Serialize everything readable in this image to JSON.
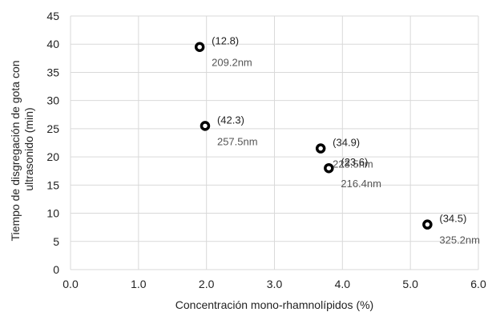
{
  "chart_data": {
    "type": "scatter",
    "title": "",
    "xlabel": "Concentración mono-rhamnolípidos (%)",
    "ylabel": [
      "Tiempo de disgregación de gota con",
      "ultrasonido (min)"
    ],
    "xlim": [
      0,
      6
    ],
    "ylim": [
      0,
      45
    ],
    "x_ticks": [
      "0.0",
      "1.0",
      "2.0",
      "3.0",
      "4.0",
      "5.0",
      "6.0"
    ],
    "y_ticks": [
      "0",
      "5",
      "10",
      "15",
      "20",
      "25",
      "30",
      "35",
      "40",
      "45"
    ],
    "grid": true,
    "points": [
      {
        "x": 1.9,
        "y": 39.5,
        "label": "(12.8)",
        "size_label": "209.2nm"
      },
      {
        "x": 1.98,
        "y": 25.5,
        "label": "(42.3)",
        "size_label": "257.5nm"
      },
      {
        "x": 3.68,
        "y": 21.5,
        "label": "(34.9)",
        "size_label": "223.5nm"
      },
      {
        "x": 3.8,
        "y": 18.0,
        "label": "(23.6)",
        "size_label": "216.4nm"
      },
      {
        "x": 5.25,
        "y": 8.0,
        "label": "(34.5)",
        "size_label": "325.2nm"
      }
    ],
    "colors": {
      "marker_edge": "#000000",
      "grid": "#d9d9d9"
    }
  }
}
